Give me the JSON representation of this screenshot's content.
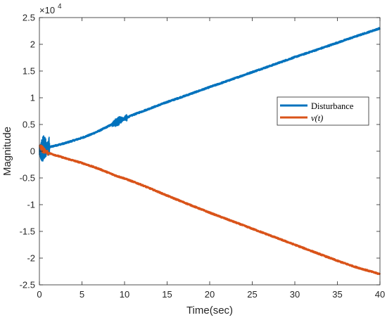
{
  "chart_data": {
    "type": "line",
    "xlabel": "Time(sec)",
    "ylabel": "Magnitude",
    "xlim": [
      0,
      40
    ],
    "ylim": [
      -25000,
      25000
    ],
    "x_ticks": [
      0,
      5,
      10,
      15,
      20,
      25,
      30,
      35,
      40
    ],
    "y_ticks": [
      -25000,
      -20000,
      -15000,
      -10000,
      -5000,
      0,
      5000,
      10000,
      15000,
      20000,
      25000
    ],
    "x_tick_labels": [
      "0",
      "5",
      "10",
      "15",
      "20",
      "25",
      "30",
      "35",
      "40"
    ],
    "y_tick_labels": [
      "-2.5",
      "-2",
      "-1.5",
      "-1",
      "-0.5",
      "0",
      "0.5",
      "1",
      "1.5",
      "2",
      "2.5"
    ],
    "y_exponent_label": "×10",
    "y_exponent_power": "4",
    "grid": false,
    "legend_position": "right",
    "series": [
      {
        "name": "Disturbance",
        "color": "#0072BD",
        "x": [
          0,
          0.5,
          1,
          2,
          3,
          4,
          5,
          6,
          7,
          8,
          8.5,
          9,
          9.5,
          10,
          11,
          12,
          13,
          14,
          15,
          17,
          20,
          22,
          25,
          27,
          30,
          33,
          35,
          37,
          40
        ],
        "y": [
          0,
          500,
          700,
          1100,
          1500,
          2000,
          2500,
          3100,
          3800,
          4600,
          5000,
          5400,
          5800,
          6100,
          6800,
          7400,
          8000,
          8600,
          9200,
          10300,
          12000,
          13100,
          14800,
          15900,
          17600,
          19200,
          20300,
          21400,
          23000
        ],
        "noise_segments": [
          {
            "from": 0,
            "to": 1.2,
            "amplitude": 2500
          },
          {
            "from": 8.5,
            "to": 10.3,
            "amplitude": 900
          }
        ]
      },
      {
        "name": "v(t)",
        "color": "#D95319",
        "x": [
          0,
          0.5,
          1,
          2,
          3,
          5,
          7,
          9,
          10,
          12,
          15,
          17,
          20,
          22,
          25,
          27,
          30,
          33,
          35,
          37,
          40
        ],
        "y": [
          1000,
          200,
          -300,
          -800,
          -1300,
          -2200,
          -3300,
          -4600,
          -5100,
          -6300,
          -8300,
          -9600,
          -11500,
          -12700,
          -14500,
          -15700,
          -17500,
          -19300,
          -20500,
          -21600,
          -23000
        ],
        "noise_segments": [
          {
            "from": 0,
            "to": 1.0,
            "amplitude": 700
          }
        ]
      }
    ]
  }
}
